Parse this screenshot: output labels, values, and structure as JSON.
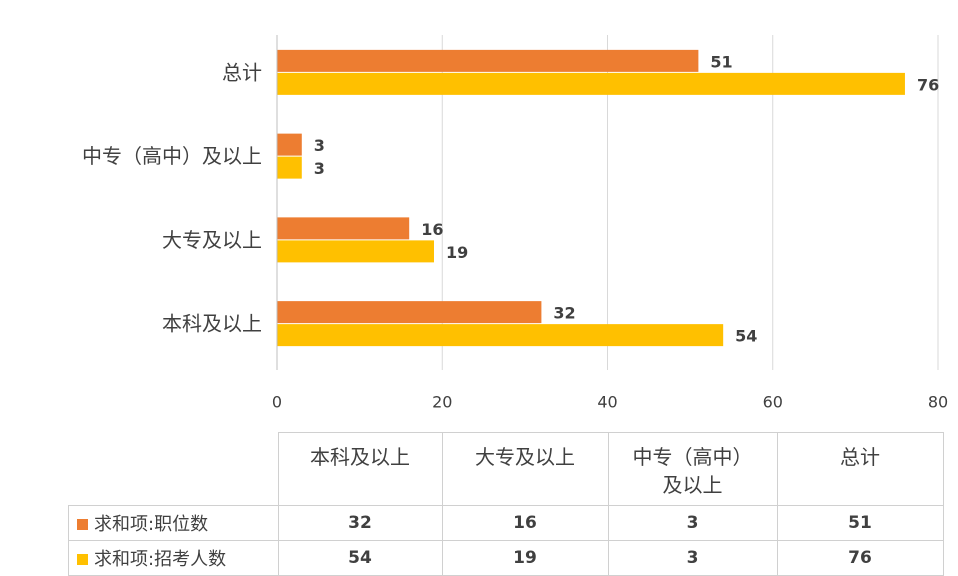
{
  "chart_data": {
    "type": "bar",
    "orientation": "horizontal",
    "categories": [
      "本科及以上",
      "大专及以上",
      "中专（高中）及以上",
      "总计"
    ],
    "series": [
      {
        "name": "求和项:职位数",
        "color": "#ED7D31",
        "values": [
          32,
          16,
          3,
          51
        ]
      },
      {
        "name": "求和项:招考人数",
        "color": "#FFC000",
        "values": [
          54,
          19,
          3,
          76
        ]
      }
    ],
    "xlim": [
      0,
      80
    ],
    "xticks": [
      0,
      20,
      40,
      60,
      80
    ],
    "grid": true,
    "data_table": true
  }
}
